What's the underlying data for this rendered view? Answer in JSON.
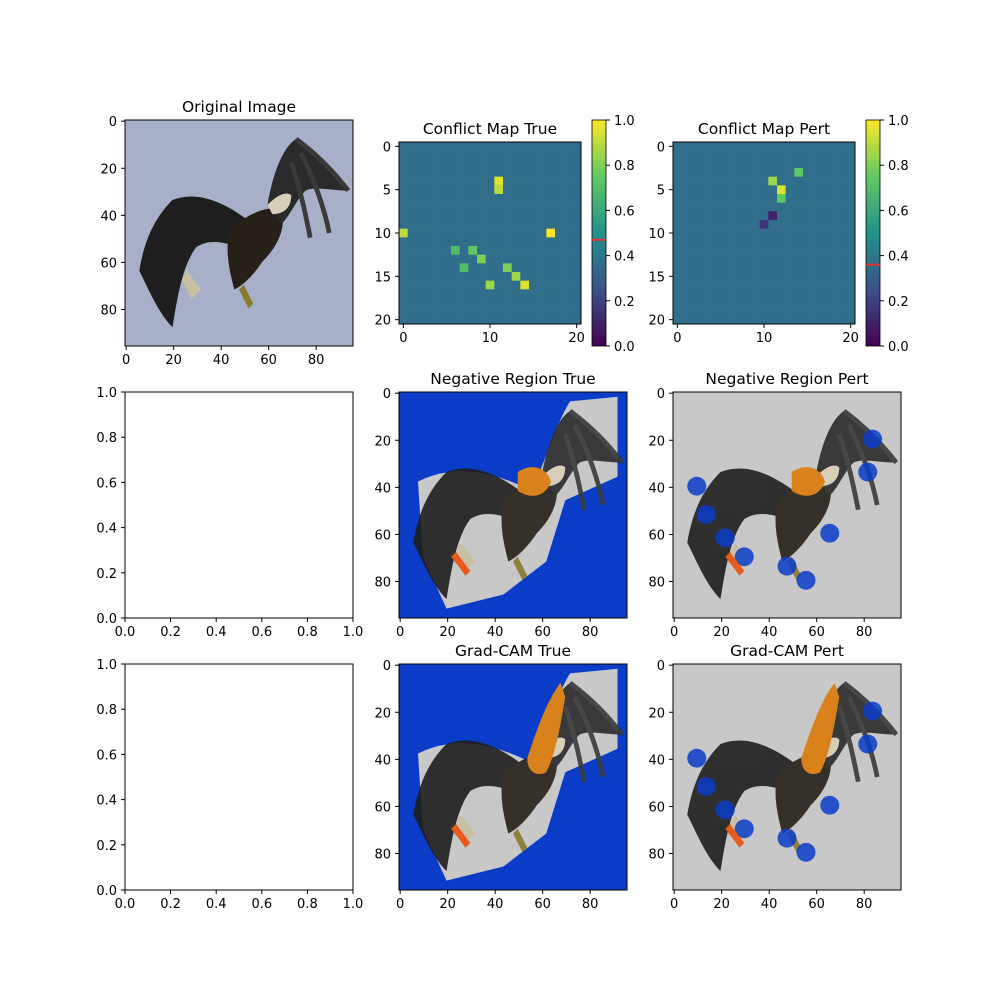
{
  "figure": {
    "background": "#ffffff",
    "colors": {
      "sky": "#a7b0c8",
      "overlay_blue": "#0a3cc8",
      "overlay_gray": "#c8c8c8",
      "highlight_orange": "#d9821c",
      "viridis": [
        "#440154",
        "#3b528b",
        "#21918c",
        "#5ec962",
        "#fde725"
      ],
      "colorbar_marker": "#e03030"
    }
  },
  "chart_data": [
    {
      "type": "image",
      "title": "Original Image",
      "xticks": [
        0,
        20,
        40,
        60,
        80
      ],
      "yticks": [
        0,
        20,
        40,
        60,
        80
      ],
      "xlim": [
        -0.5,
        95.5
      ],
      "ylim": [
        95.5,
        -0.5
      ],
      "content": "eagle photo"
    },
    {
      "type": "heatmap",
      "title": "Conflict Map True",
      "xticks": [
        0,
        10,
        20
      ],
      "yticks": [
        0,
        5,
        10,
        15,
        20
      ],
      "xlim": [
        -0.5,
        20.5
      ],
      "ylim": [
        20.5,
        -0.5
      ],
      "background_value": 0.36,
      "colorbar": {
        "ticks": [
          "0.0",
          "0.2",
          "0.4",
          "0.6",
          "0.8",
          "1.0"
        ],
        "marker": 0.47
      },
      "hot_cells": [
        [
          11,
          4,
          0.95
        ],
        [
          11,
          5,
          0.9
        ],
        [
          17,
          10,
          1.0
        ],
        [
          0,
          10,
          0.9
        ],
        [
          14,
          16,
          0.95
        ],
        [
          13,
          15,
          0.85
        ],
        [
          12,
          14,
          0.8
        ],
        [
          10,
          16,
          0.85
        ],
        [
          9,
          13,
          0.8
        ],
        [
          8,
          12,
          0.75
        ],
        [
          6,
          12,
          0.7
        ],
        [
          7,
          14,
          0.7
        ]
      ]
    },
    {
      "type": "heatmap",
      "title": "Conflict Map Pert",
      "xticks": [
        0,
        10,
        20
      ],
      "yticks": [
        0,
        5,
        10,
        15,
        20
      ],
      "xlim": [
        -0.5,
        20.5
      ],
      "ylim": [
        20.5,
        -0.5
      ],
      "background_value": 0.36,
      "colorbar": {
        "ticks": [
          "0.0",
          "0.2",
          "0.4",
          "0.6",
          "0.8",
          "1.0"
        ],
        "marker": 0.36
      },
      "hot_cells": [
        [
          12,
          5,
          0.95
        ],
        [
          11,
          4,
          0.85
        ],
        [
          12,
          6,
          0.75
        ],
        [
          14,
          3,
          0.75
        ],
        [
          11,
          8,
          0.1
        ],
        [
          10,
          9,
          0.15
        ]
      ]
    },
    {
      "type": "empty",
      "title": "",
      "xticks": [
        "0.0",
        "0.2",
        "0.4",
        "0.6",
        "0.8",
        "1.0"
      ],
      "yticks": [
        "0.0",
        "0.2",
        "0.4",
        "0.6",
        "0.8",
        "1.0"
      ],
      "xlim": [
        0,
        1
      ],
      "ylim": [
        0,
        1
      ]
    },
    {
      "type": "image",
      "title": "Negative Region True",
      "xticks": [
        0,
        20,
        40,
        60,
        80
      ],
      "yticks": [
        0,
        20,
        40,
        60,
        80
      ],
      "xlim": [
        -0.5,
        95.5
      ],
      "ylim": [
        95.5,
        -0.5
      ],
      "content": "eagle with blue negative-region overlay"
    },
    {
      "type": "image",
      "title": "Negative Region Pert",
      "xticks": [
        0,
        20,
        40,
        60,
        80
      ],
      "yticks": [
        0,
        20,
        40,
        60,
        80
      ],
      "xlim": [
        -0.5,
        95.5
      ],
      "ylim": [
        95.5,
        -0.5
      ],
      "content": "eagle with blue negative-region overlay"
    },
    {
      "type": "empty",
      "title": "",
      "xticks": [
        "0.0",
        "0.2",
        "0.4",
        "0.6",
        "0.8",
        "1.0"
      ],
      "yticks": [
        "0.0",
        "0.2",
        "0.4",
        "0.6",
        "0.8",
        "1.0"
      ],
      "xlim": [
        0,
        1
      ],
      "ylim": [
        0,
        1
      ]
    },
    {
      "type": "image",
      "title": "Grad-CAM True",
      "xticks": [
        0,
        20,
        40,
        60,
        80
      ],
      "yticks": [
        0,
        20,
        40,
        60,
        80
      ],
      "xlim": [
        -0.5,
        95.5
      ],
      "ylim": [
        95.5,
        -0.5
      ],
      "content": "eagle with Grad-CAM overlay"
    },
    {
      "type": "image",
      "title": "Grad-CAM Pert",
      "xticks": [
        0,
        20,
        40,
        60,
        80
      ],
      "yticks": [
        0,
        20,
        40,
        60,
        80
      ],
      "xlim": [
        -0.5,
        95.5
      ],
      "ylim": [
        95.5,
        -0.5
      ],
      "content": "eagle with Grad-CAM overlay"
    }
  ]
}
